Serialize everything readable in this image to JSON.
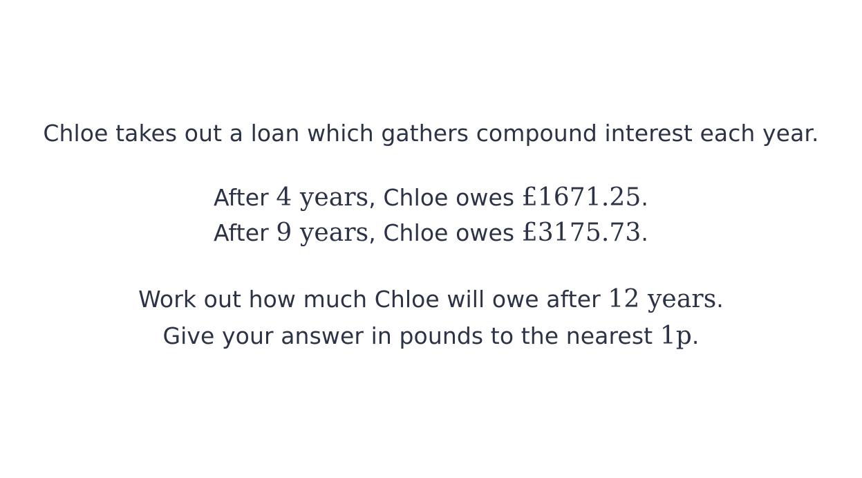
{
  "intro": "Chloe takes out a loan which gathers compound interest each year.",
  "fact_1": {
    "before": "After ",
    "years": "4",
    "unit": " years",
    "middle": ", Chloe owes ",
    "amount": "£1671.25",
    "end": "."
  },
  "fact_2": {
    "before": "After ",
    "years": "9",
    "unit": " years",
    "middle": ", Chloe owes ",
    "amount": "£3175.73",
    "end": "."
  },
  "task": {
    "before": "Work out how much Chloe will owe after ",
    "years": "12",
    "unit": " years",
    "end": "."
  },
  "rounding": {
    "before": "Give your answer in pounds to the nearest ",
    "value": "1p",
    "end": "."
  }
}
